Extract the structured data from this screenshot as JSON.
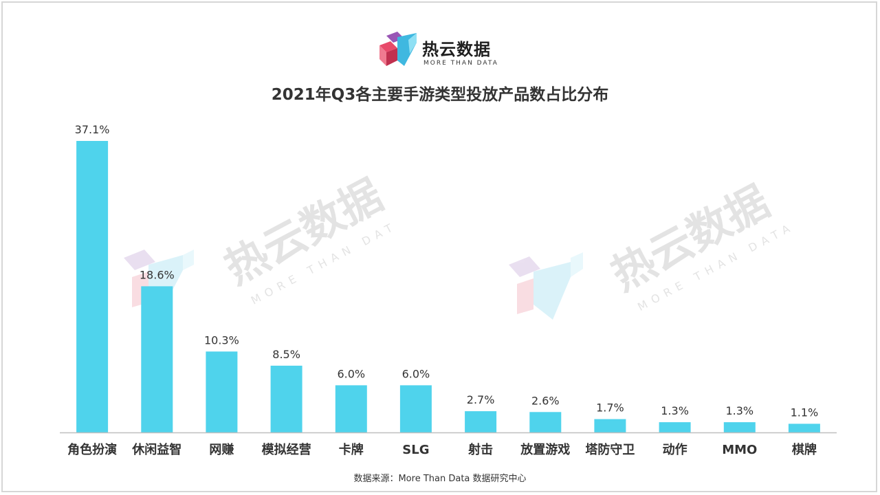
{
  "brand": {
    "name": "热云数据",
    "tagline": "MORE THAN DATA"
  },
  "watermark": {
    "name": "热云数据",
    "tagline": "MORE THAN DATA"
  },
  "source": "数据来源：More Than Data 数据研究中心",
  "colors": {
    "bar": "#4fd3ec",
    "axis": "#bfbfbf",
    "label": "#333333"
  },
  "chart_data": {
    "type": "bar",
    "title": "2021年Q3各主要手游类型投放产品数占比分布",
    "categories": [
      "角色扮演",
      "休闲益智",
      "网赚",
      "模拟经营",
      "卡牌",
      "SLG",
      "射击",
      "放置游戏",
      "塔防守卫",
      "动作",
      "MMO",
      "棋牌"
    ],
    "values": [
      37.1,
      18.6,
      10.3,
      8.5,
      6.0,
      6.0,
      2.7,
      2.6,
      1.7,
      1.3,
      1.3,
      1.1
    ],
    "data_labels": [
      "37.1%",
      "18.6%",
      "10.3%",
      "8.5%",
      "6.0%",
      "6.0%",
      "2.7%",
      "2.6%",
      "1.7%",
      "1.3%",
      "1.3%",
      "1.1%"
    ],
    "unit": "%",
    "ylim": [
      0,
      37.1
    ],
    "grid": false,
    "legend": "none"
  }
}
